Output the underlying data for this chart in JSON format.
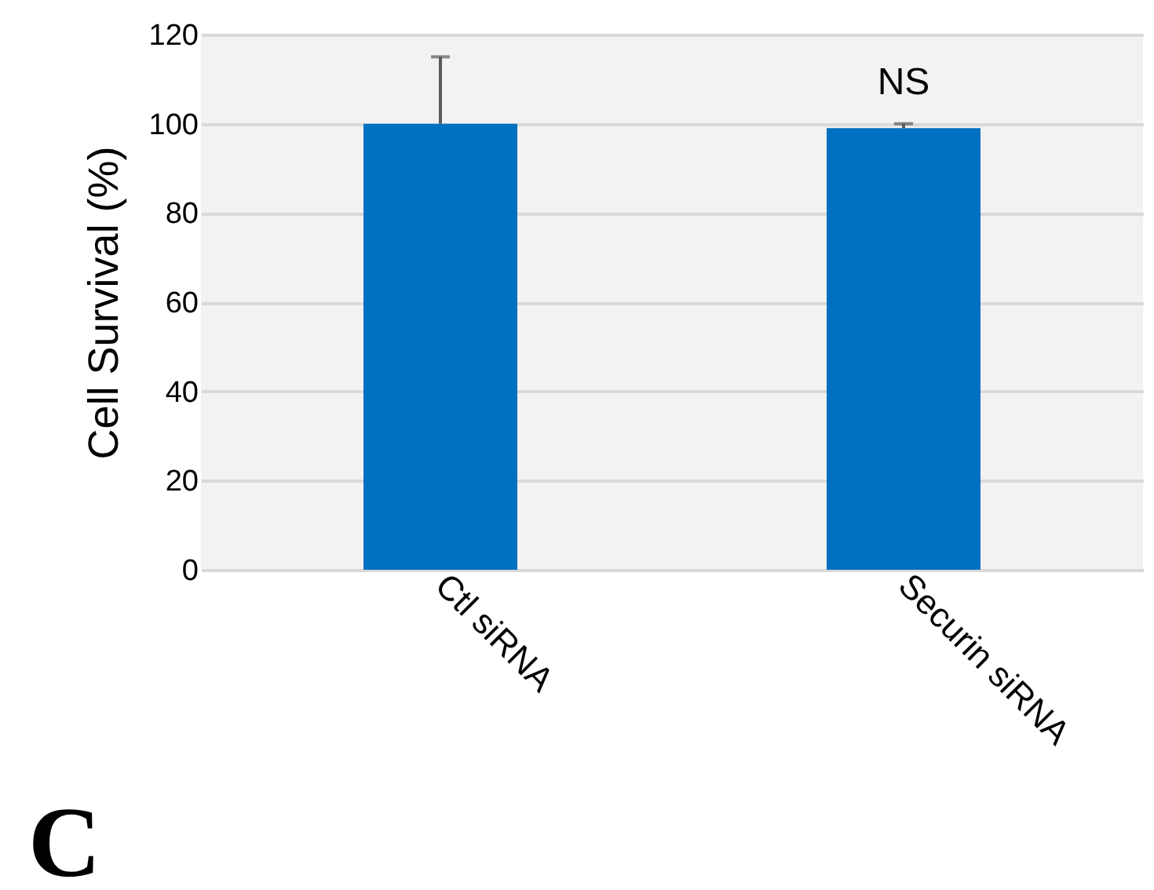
{
  "chart_data": {
    "type": "bar",
    "ylabel": "Cell Survival (%)",
    "categories": [
      "Ctl siRNA",
      "Securin siRNA"
    ],
    "values": [
      100,
      99
    ],
    "errors": [
      [
        100,
        115
      ],
      [
        99,
        100
      ]
    ],
    "color": "#0070c0",
    "ylim": [
      0,
      120
    ],
    "yticks": [
      0,
      20,
      40,
      60,
      80,
      100,
      120
    ],
    "grid": "y",
    "annotations": [
      "NS",
      "C"
    ]
  }
}
